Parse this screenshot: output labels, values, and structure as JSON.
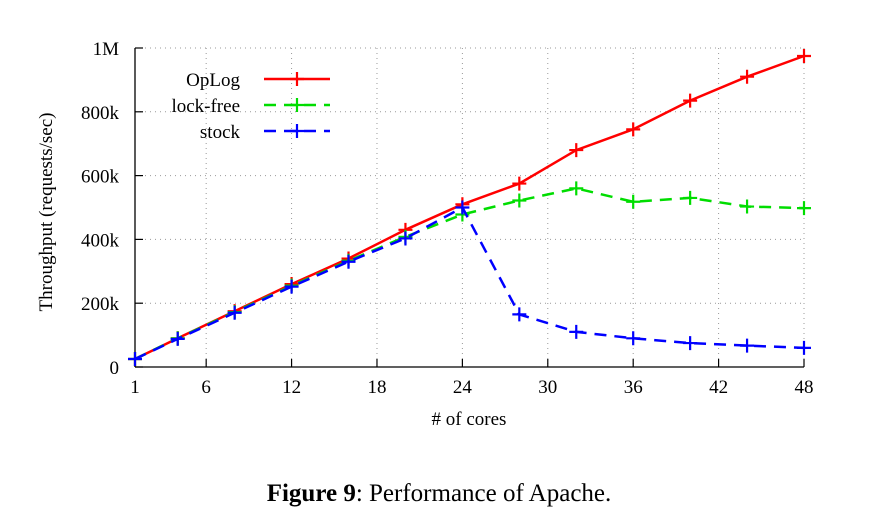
{
  "chart_data": {
    "type": "line",
    "xlabel": "# of cores",
    "ylabel": "Throughput (requests/sec)",
    "xlim": [
      1,
      48
    ],
    "ylim": [
      0,
      1000000
    ],
    "x_ticks": [
      1,
      6,
      12,
      18,
      24,
      30,
      36,
      42,
      48
    ],
    "y_ticks": [
      {
        "value": 0,
        "label": "0"
      },
      {
        "value": 200000,
        "label": "200k"
      },
      {
        "value": 400000,
        "label": "400k"
      },
      {
        "value": 600000,
        "label": "600k"
      },
      {
        "value": 800000,
        "label": "800k"
      },
      {
        "value": 1000000,
        "label": "1M"
      }
    ],
    "grid": true,
    "legend_position": "top-left",
    "x": [
      1,
      4,
      8,
      12,
      16,
      20,
      24,
      28,
      32,
      36,
      40,
      44,
      48
    ],
    "series": [
      {
        "name": "OpLog",
        "color": "#ff0000",
        "dash": "solid",
        "values": [
          25000,
          90000,
          175000,
          260000,
          340000,
          430000,
          510000,
          575000,
          680000,
          745000,
          835000,
          910000,
          975000
        ]
      },
      {
        "name": "lock-free",
        "color": "#00dd00",
        "dash": "dashed",
        "values": [
          25000,
          90000,
          172000,
          255000,
          333000,
          408000,
          478000,
          522000,
          560000,
          518000,
          530000,
          503000,
          498000
        ]
      },
      {
        "name": "stock",
        "color": "#0000ff",
        "dash": "dashed",
        "values": [
          25000,
          88000,
          170000,
          252000,
          330000,
          403000,
          500000,
          165000,
          110000,
          90000,
          75000,
          67000,
          60000
        ]
      }
    ]
  },
  "caption": {
    "label": "Figure 9",
    "text": ": Performance of Apache."
  }
}
